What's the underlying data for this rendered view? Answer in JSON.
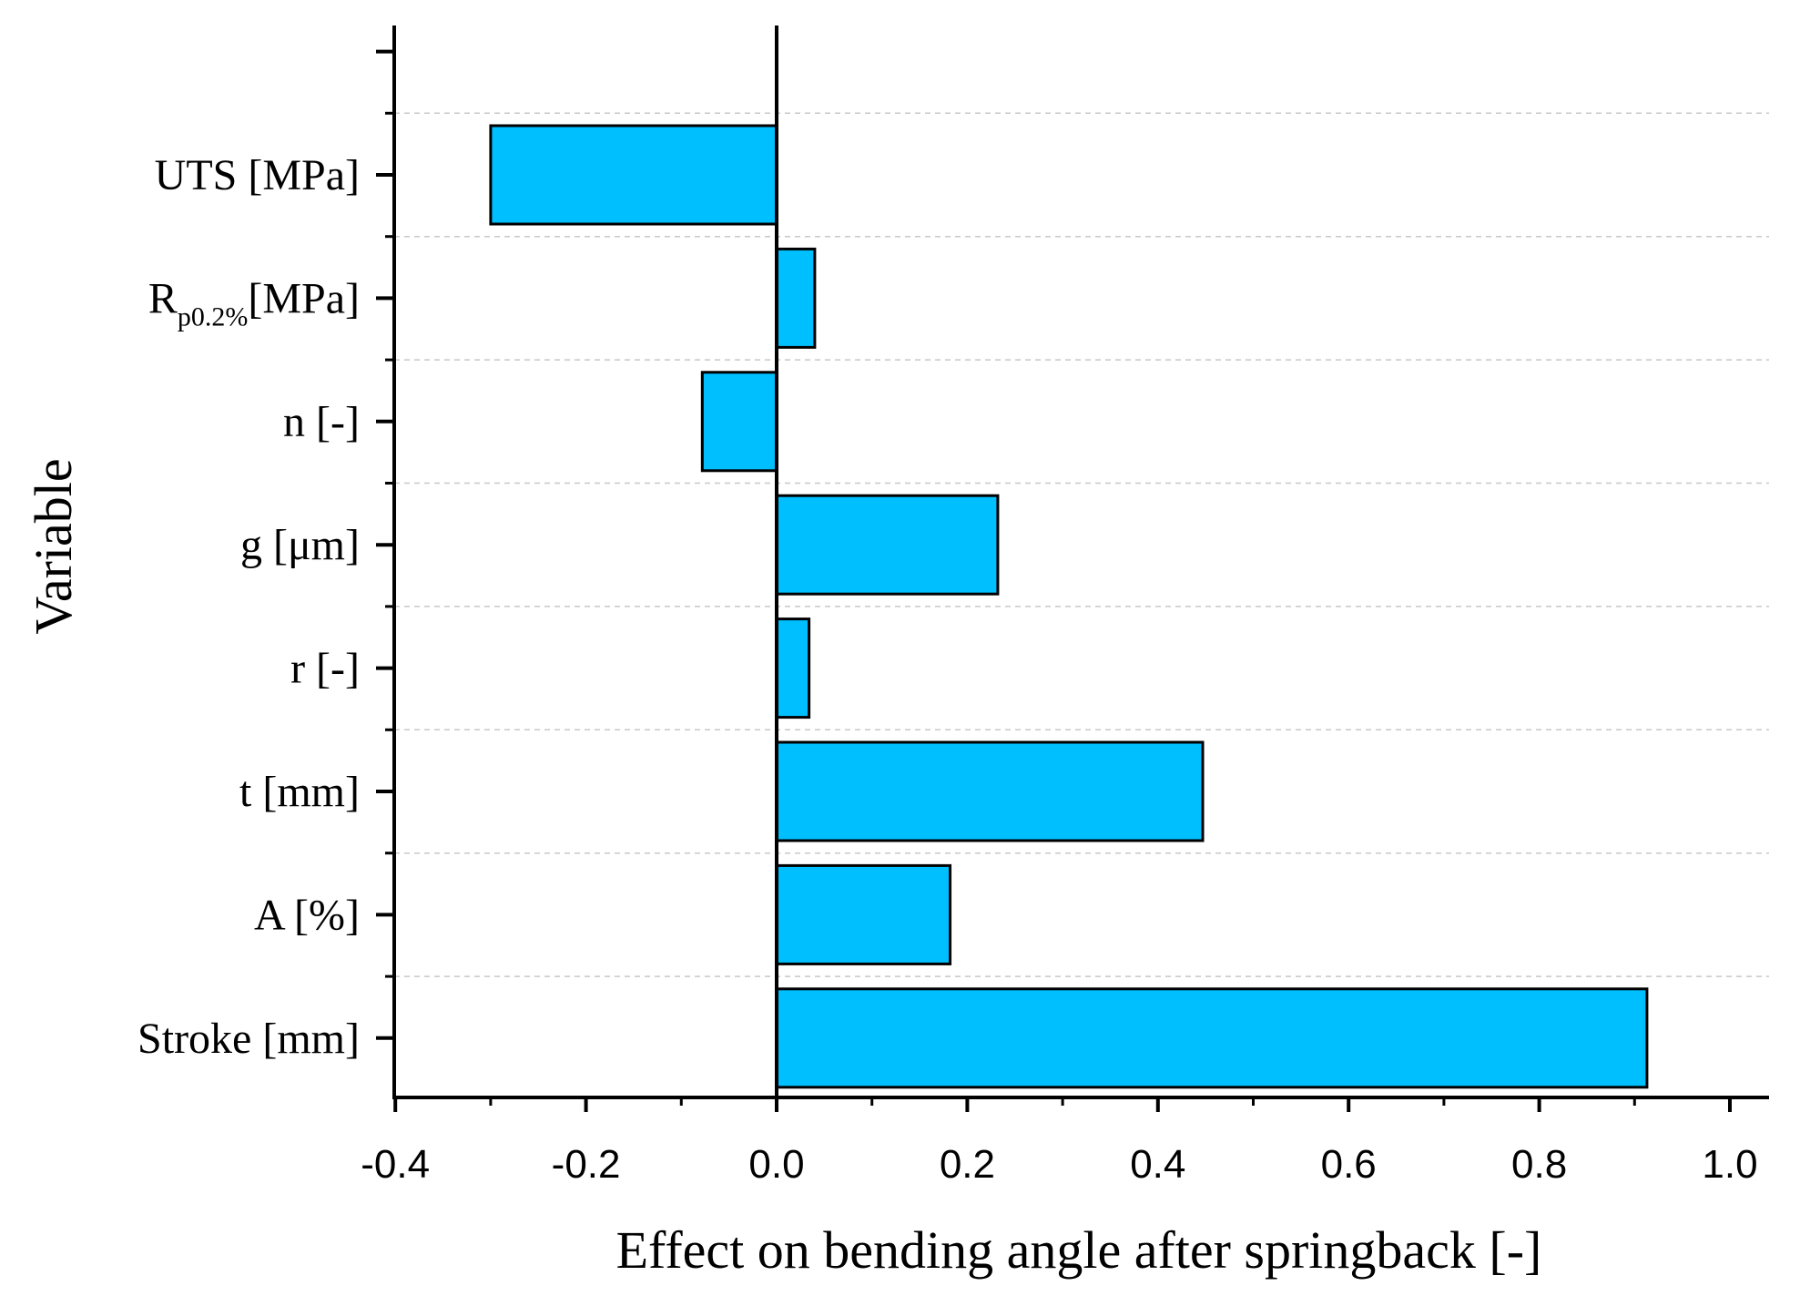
{
  "chart_data": {
    "type": "bar",
    "orientation": "horizontal",
    "title": "",
    "xlabel": "Effect on bending angle after springback [-]",
    "ylabel": "Variable",
    "xlim": [
      -0.4,
      1.04
    ],
    "xticks": [
      -0.4,
      -0.2,
      0.0,
      0.2,
      0.4,
      0.6,
      0.8,
      1.0
    ],
    "xtick_labels": [
      "-0.4",
      "-0.2",
      "0.0",
      "0.2",
      "0.4",
      "0.6",
      "0.8",
      "1.0"
    ],
    "grid": "horizontal dashed",
    "categories": [
      {
        "label": "UTS [MPa]",
        "main": "UTS [MPa]",
        "sub": "",
        "tail": ""
      },
      {
        "label": "Rp0.2%[MPa]",
        "main": "R",
        "sub": "p0.2%",
        "tail": "[MPa]"
      },
      {
        "label": "n [-]",
        "main": "n [-]",
        "sub": "",
        "tail": ""
      },
      {
        "label": "g [μm]",
        "main": "g [μm]",
        "sub": "",
        "tail": ""
      },
      {
        "label": "r [-]",
        "main": "r [-]",
        "sub": "",
        "tail": ""
      },
      {
        "label": "t [mm]",
        "main": "t [mm]",
        "sub": "",
        "tail": ""
      },
      {
        "label": "A [%]",
        "main": "A [%]",
        "sub": "",
        "tail": ""
      },
      {
        "label": "Stroke [mm]",
        "main": "Stroke [mm]",
        "sub": "",
        "tail": ""
      }
    ],
    "values": [
      -0.3,
      0.04,
      -0.078,
      0.232,
      0.034,
      0.447,
      0.182,
      0.913
    ],
    "bar_color": "#00BFFF",
    "bar_edge_color": "#000000",
    "grid_color": "#C8C8C8"
  }
}
